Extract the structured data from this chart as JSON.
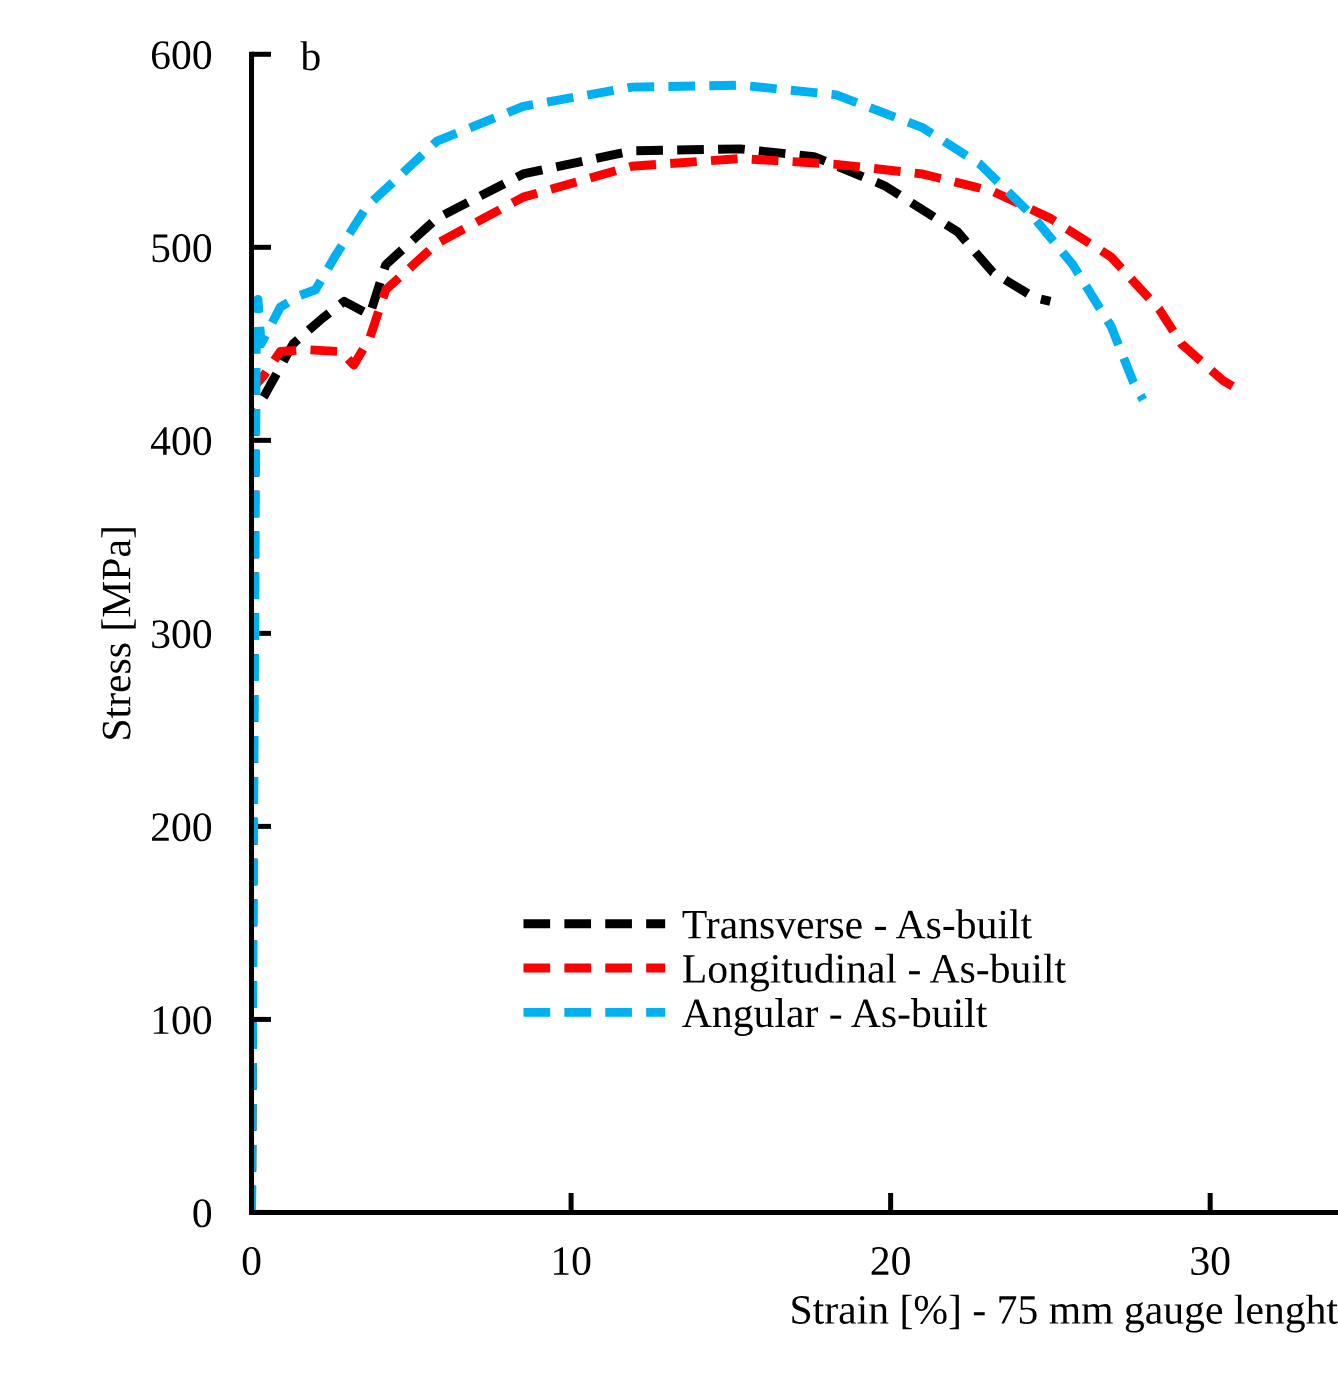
{
  "chart_data": {
    "type": "line",
    "xlabel": "Strain [%] - 75 mm gauge lenght",
    "ylabel": "Stress [MPa]",
    "annotations": [
      "b"
    ],
    "xlim": [
      0,
      34
    ],
    "ylim": [
      0,
      600
    ],
    "xticks": [
      0,
      10,
      20,
      30
    ],
    "yticks": [
      0,
      100,
      200,
      300,
      400,
      500,
      600
    ],
    "grid": false,
    "legend": "bottom",
    "line_style": "dashed",
    "marker": "none",
    "series": [
      {
        "name": "Transverse - As-built",
        "color": "#000000",
        "x": [
          0,
          0.1,
          0.4,
          1.3,
          2.2,
          2.9,
          3.7,
          4.2,
          5.8,
          8.5,
          11.9,
          15.3,
          17.6,
          19.8,
          22.1,
          23.2,
          24.5,
          25
        ],
        "values": [
          0,
          415,
          423,
          450,
          463,
          472,
          465,
          491,
          515,
          538,
          550,
          551,
          547,
          532,
          508,
          487,
          474,
          472
        ]
      },
      {
        "name": "Longitudinal - As-built",
        "color": "#ff0000",
        "x": [
          0,
          0.1,
          0.4,
          0.9,
          1.7,
          2.8,
          3.2,
          3.7,
          4.2,
          5.8,
          8.5,
          11.9,
          15.3,
          18.3,
          21,
          23.2,
          25,
          26.9,
          28.4,
          29.1,
          30.4,
          30.9
        ],
        "values": [
          0,
          428,
          434,
          446,
          447,
          446,
          439,
          453,
          478,
          502,
          526,
          542,
          546,
          543,
          538,
          529,
          515,
          495,
          468,
          450,
          431,
          426
        ]
      },
      {
        "name": "Angular - As-built",
        "color": "#00b0f0",
        "x": [
          0,
          0.15,
          0.2,
          0.3,
          0.9,
          1.5,
          2.0,
          2.6,
          3.6,
          5.8,
          8.5,
          11.9,
          15.3,
          18.3,
          21,
          22.8,
          24.4,
          25.7,
          26.9,
          27.6,
          27.9
        ],
        "values": [
          0,
          460,
          473,
          450,
          469,
          475,
          478,
          495,
          521,
          555,
          573,
          583,
          584,
          579,
          562,
          543,
          517,
          491,
          459,
          430,
          421
        ]
      }
    ]
  }
}
